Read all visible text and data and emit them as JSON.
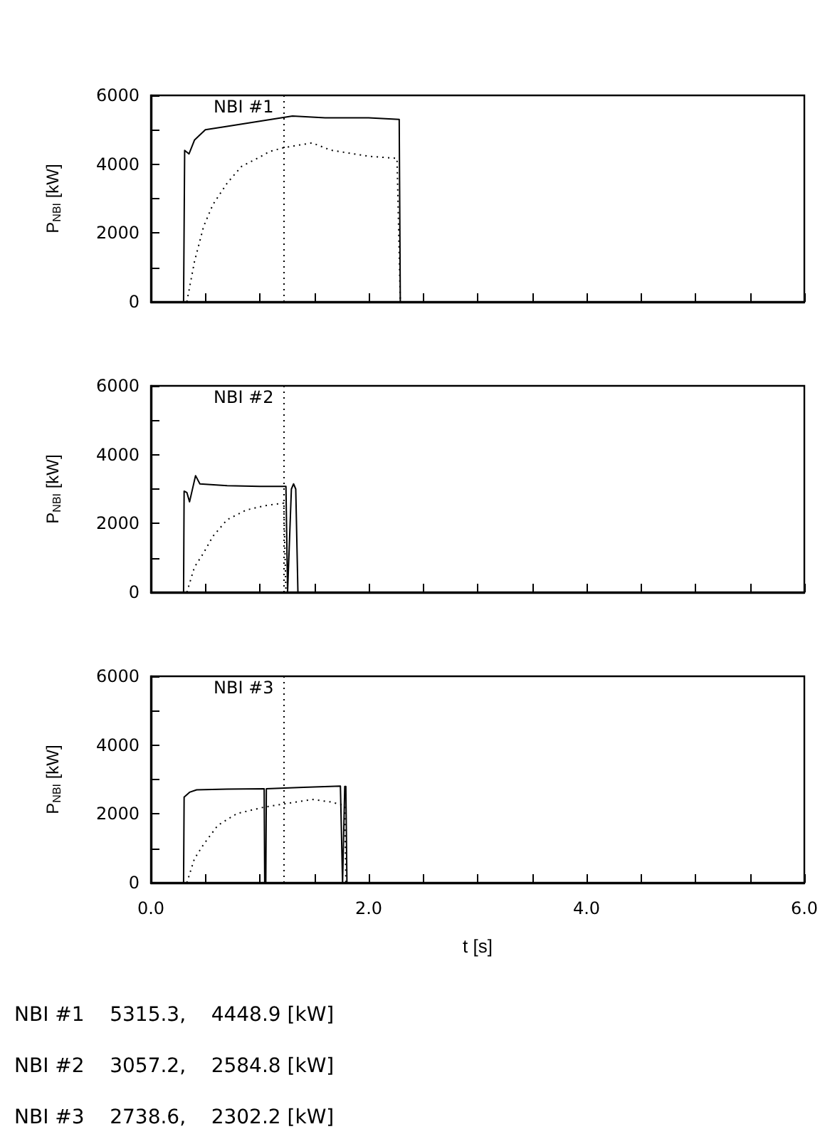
{
  "chart_data": [
    {
      "type": "line",
      "annotations": [
        "NBI #1"
      ],
      "ylabel": "P$_{NBI}$ [kW]",
      "xlim": [
        0,
        6
      ],
      "ylim": [
        0,
        6000
      ],
      "tick_labels": "y",
      "grid": false,
      "marker": "none",
      "xticks": [
        {
          "value": 0,
          "label": null
        },
        {
          "value": 0.5,
          "label": null
        },
        {
          "value": 1,
          "label": null
        },
        {
          "value": 1.5,
          "label": null
        },
        {
          "value": 2,
          "label": null
        },
        {
          "value": 2.5,
          "label": null
        },
        {
          "value": 3,
          "label": null
        },
        {
          "value": 3.5,
          "label": null
        },
        {
          "value": 4,
          "label": null
        },
        {
          "value": 4.5,
          "label": null
        },
        {
          "value": 5,
          "label": null
        },
        {
          "value": 5.5,
          "label": null
        },
        {
          "value": 6,
          "label": null
        }
      ],
      "yticks": [
        0,
        {
          "value": 1000,
          "label": null
        },
        2000,
        {
          "value": 3000,
          "label": null
        },
        4000,
        {
          "value": 5000,
          "label": null
        },
        6000
      ],
      "ref_lines": [
        {
          "axis": "x",
          "value": 1.22,
          "color": "#000000",
          "line_style": "dotted"
        }
      ],
      "series": [
        {
          "color": "#000000",
          "line_style": "solid",
          "x": [
            0.3,
            0.31,
            0.35,
            0.4,
            0.5,
            0.7,
            1.0,
            1.3,
            1.6,
            2.0,
            2.28,
            2.29
          ],
          "values": [
            0,
            4400,
            4300,
            4700,
            5000,
            5100,
            5250,
            5400,
            5350,
            5350,
            5300,
            0
          ]
        },
        {
          "color": "#000000",
          "line_style": "dotted",
          "x": [
            0.33,
            0.4,
            0.485,
            0.57,
            0.7,
            0.83,
            1.0,
            1.09,
            1.22,
            1.48,
            1.65,
            2.0,
            2.26,
            2.29
          ],
          "values": [
            0,
            1170,
            2200,
            2830,
            3450,
            3930,
            4210,
            4370,
            4480,
            4620,
            4410,
            4230,
            4170,
            0
          ]
        }
      ]
    },
    {
      "type": "line",
      "annotations": [
        "NBI #2"
      ],
      "ylabel": "P$_{NBI}$ [kW]",
      "xlim": [
        0,
        6
      ],
      "ylim": [
        0,
        6000
      ],
      "tick_labels": "y",
      "grid": false,
      "marker": "none",
      "xticks": [
        {
          "value": 0,
          "label": null
        },
        {
          "value": 0.5,
          "label": null
        },
        {
          "value": 1,
          "label": null
        },
        {
          "value": 1.5,
          "label": null
        },
        {
          "value": 2,
          "label": null
        },
        {
          "value": 2.5,
          "label": null
        },
        {
          "value": 3,
          "label": null
        },
        {
          "value": 3.5,
          "label": null
        },
        {
          "value": 4,
          "label": null
        },
        {
          "value": 4.5,
          "label": null
        },
        {
          "value": 5,
          "label": null
        },
        {
          "value": 5.5,
          "label": null
        },
        {
          "value": 6,
          "label": null
        }
      ],
      "yticks": [
        0,
        {
          "value": 1000,
          "label": null
        },
        2000,
        {
          "value": 3000,
          "label": null
        },
        4000,
        {
          "value": 5000,
          "label": null
        },
        6000
      ],
      "ref_lines": [
        {
          "axis": "x",
          "value": 1.22,
          "color": "#000000",
          "line_style": "dotted"
        }
      ],
      "series": [
        {
          "color": "#000000",
          "line_style": "solid",
          "x": [
            0.3,
            0.305,
            0.33,
            0.355,
            0.41,
            0.45,
            0.7,
            1.0,
            1.24,
            1.255,
            1.29,
            1.31,
            1.33,
            1.35
          ],
          "values": [
            0,
            2940,
            2900,
            2630,
            3390,
            3150,
            3100,
            3080,
            3080,
            0,
            3000,
            3150,
            3000,
            0
          ]
        },
        {
          "color": "#000000",
          "line_style": "dotted",
          "x": [
            0.33,
            0.4,
            0.485,
            0.57,
            0.7,
            0.875,
            1.05,
            1.22,
            1.24
          ],
          "values": [
            0,
            730,
            1150,
            1630,
            2110,
            2390,
            2520,
            2590,
            0
          ]
        }
      ]
    },
    {
      "type": "line",
      "annotations": [
        "NBI #3"
      ],
      "ylabel": "P$_{NBI}$ [kW]",
      "xlabel": "t [s]",
      "xlim": [
        0,
        6
      ],
      "ylim": [
        0,
        6000
      ],
      "grid": false,
      "marker": "none",
      "xticks": [
        {
          "value": 0,
          "label": "0.0"
        },
        {
          "value": 0.5,
          "label": null
        },
        {
          "value": 1,
          "label": null
        },
        {
          "value": 1.5,
          "label": null
        },
        {
          "value": 2,
          "label": "2.0"
        },
        {
          "value": 2.5,
          "label": null
        },
        {
          "value": 3,
          "label": null
        },
        {
          "value": 3.5,
          "label": null
        },
        {
          "value": 4,
          "label": "4.0"
        },
        {
          "value": 4.5,
          "label": null
        },
        {
          "value": 5,
          "label": null
        },
        {
          "value": 5.5,
          "label": null
        },
        {
          "value": 6,
          "label": "6.0"
        }
      ],
      "yticks": [
        0,
        {
          "value": 1000,
          "label": null
        },
        2000,
        {
          "value": 3000,
          "label": null
        },
        4000,
        {
          "value": 5000,
          "label": null
        },
        6000
      ],
      "ref_lines": [
        {
          "axis": "x",
          "value": 1.22,
          "color": "#000000",
          "line_style": "dotted"
        }
      ],
      "series": [
        {
          "color": "#000000",
          "line_style": "solid",
          "x": [
            0.3,
            0.305,
            0.355,
            0.42,
            0.7,
            1.04,
            1.045,
            1.055,
            1.06,
            1.4,
            1.74,
            1.76,
            1.78,
            1.79,
            1.8
          ],
          "values": [
            0,
            2490,
            2630,
            2700,
            2720,
            2730,
            0,
            0,
            2730,
            2770,
            2810,
            0,
            2800,
            2800,
            0
          ]
        },
        {
          "color": "#000000",
          "line_style": "dotted",
          "x": [
            0.33,
            0.4,
            0.485,
            0.615,
            0.79,
            1.03,
            1.22,
            1.48,
            1.65,
            1.78,
            1.79
          ],
          "values": [
            0,
            700,
            1120,
            1670,
            2010,
            2190,
            2290,
            2420,
            2350,
            2240,
            0
          ]
        }
      ]
    },
    {
      "type": "other",
      "annotations": [
        "NBI #1    5315.3,    4448.9 [kW]",
        "NBI #2    3057.2,    2584.8 [kW]",
        "NBI #3    2738.6,    2302.2 [kW]"
      ]
    }
  ]
}
